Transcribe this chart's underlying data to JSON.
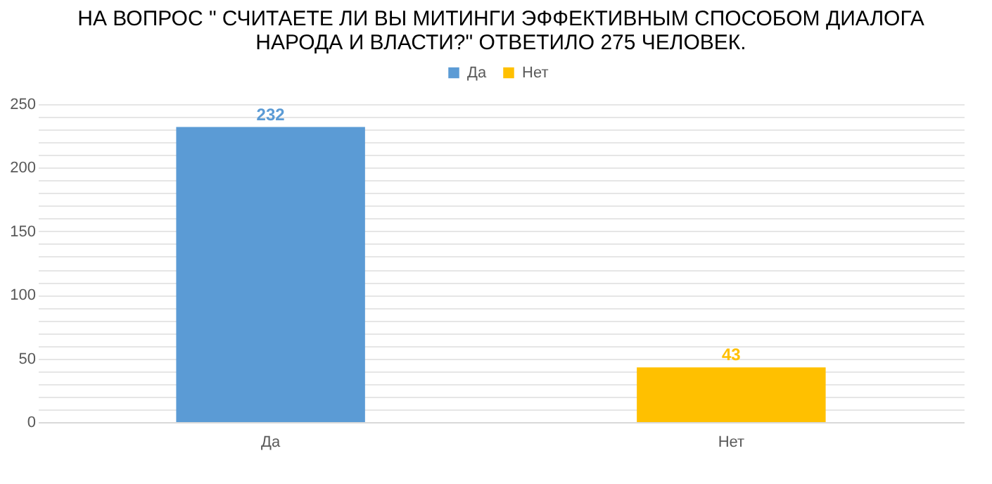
{
  "chart_data": {
    "type": "bar",
    "title": "НА ВОПРОС \" СЧИТАЕТЕ ЛИ ВЫ МИТИНГИ ЭФФЕКТИВНЫМ СПОСОБОМ ДИАЛОГА НАРОДА И ВЛАСТИ?\" ОТВЕТИЛО 275 ЧЕЛОВЕК.",
    "categories": [
      "Да",
      "Нет"
    ],
    "series": [
      {
        "name": "Да",
        "color": "#5b9bd5",
        "values": [
          232,
          null
        ]
      },
      {
        "name": "Нет",
        "color": "#ffc000",
        "values": [
          null,
          43
        ]
      }
    ],
    "ylim": [
      0,
      250
    ],
    "yticks": [
      0,
      {
        "value": 10,
        "label": null
      },
      {
        "value": 20,
        "label": null
      },
      {
        "value": 30,
        "label": null
      },
      {
        "value": 40,
        "label": null
      },
      50,
      {
        "value": 60,
        "label": null
      },
      {
        "value": 70,
        "label": null
      },
      {
        "value": 80,
        "label": null
      },
      {
        "value": 90,
        "label": null
      },
      100,
      {
        "value": 110,
        "label": null
      },
      {
        "value": 120,
        "label": null
      },
      {
        "value": 130,
        "label": null
      },
      {
        "value": 140,
        "label": null
      },
      150,
      {
        "value": 160,
        "label": null
      },
      {
        "value": 170,
        "label": null
      },
      {
        "value": 180,
        "label": null
      },
      {
        "value": 190,
        "label": null
      },
      200,
      {
        "value": 210,
        "label": null
      },
      {
        "value": 220,
        "label": null
      },
      {
        "value": 230,
        "label": null
      },
      {
        "value": 240,
        "label": null
      },
      250
    ],
    "grid": "y",
    "legend": "top",
    "data_labels": true
  }
}
